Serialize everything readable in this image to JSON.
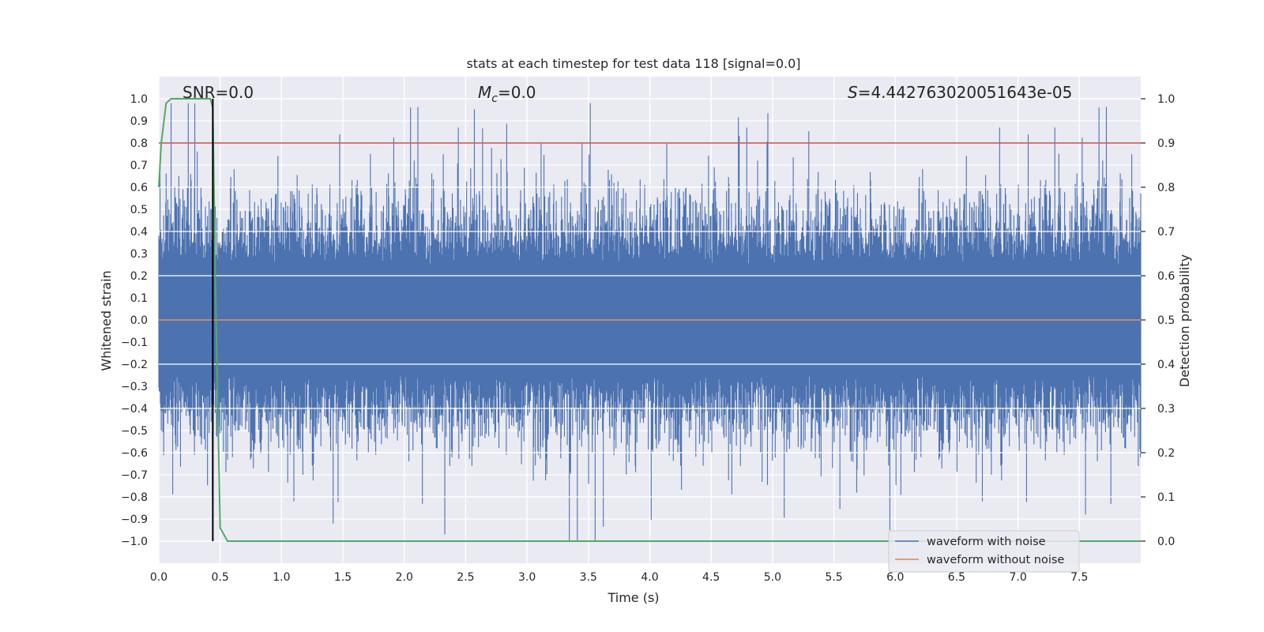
{
  "chart_data": {
    "type": "line",
    "title": "stats at each timestep for test data 118 [signal=0.0]",
    "xlabel": "Time (s)",
    "ylabel": "Whitened strain",
    "y2label": "Detection probability",
    "xlim": [
      0.0,
      8.0
    ],
    "ylim": [
      -1.1,
      1.1
    ],
    "y2lim": [
      -0.05,
      1.05
    ],
    "x_ticks": [
      "0.0",
      "0.5",
      "1.0",
      "1.5",
      "2.0",
      "2.5",
      "3.0",
      "3.5",
      "4.0",
      "4.5",
      "5.0",
      "5.5",
      "6.0",
      "6.5",
      "7.0",
      "7.5"
    ],
    "y_ticks": [
      "1.0",
      "0.9",
      "0.8",
      "0.7",
      "0.6",
      "0.5",
      "0.4",
      "0.3",
      "0.2",
      "0.1",
      "0.0",
      "−0.1",
      "−0.2",
      "−0.3",
      "−0.4",
      "−0.5",
      "−0.6",
      "−0.7",
      "−0.8",
      "−0.9",
      "−1.0"
    ],
    "y2_ticks": [
      "1.0",
      "0.9",
      "0.8",
      "0.7",
      "0.6",
      "0.5",
      "0.4",
      "0.3",
      "0.2",
      "0.1",
      "0.0"
    ],
    "annotations": {
      "snr": "SNR=0.0",
      "mc_symbol": "M",
      "mc_sub": "c",
      "mc_value": "=0.0",
      "s_symbol": "S",
      "s_value": "=4.442763020051643e-05"
    },
    "series": [
      {
        "name": "waveform with noise",
        "color": "#4c72b0",
        "style": "noise",
        "amplitude_typical": 0.45,
        "peak_max": 0.98,
        "peak_min": -1.0
      },
      {
        "name": "waveform without noise",
        "color": "#dd8452",
        "x": [
          0.0,
          8.0
        ],
        "y": [
          0.0,
          0.0
        ]
      },
      {
        "name": "detection probability",
        "axis": "right",
        "color": "#55a868",
        "x": [
          0.0,
          0.02,
          0.06,
          0.1,
          0.42,
          0.44,
          0.46,
          0.5,
          0.56,
          8.0
        ],
        "y": [
          0.8,
          0.9,
          0.99,
          1.0,
          1.0,
          0.98,
          0.6,
          0.03,
          0.0,
          0.0
        ]
      }
    ],
    "threshold": {
      "value": 0.9,
      "axis": "right",
      "color": "#c44e52"
    },
    "vline": {
      "x": 0.44,
      "ymin": -1.0,
      "ymax": 1.0,
      "color": "#000000"
    },
    "legend": {
      "placement": "lower-right",
      "entries": [
        "waveform with noise",
        "waveform without noise"
      ]
    }
  }
}
